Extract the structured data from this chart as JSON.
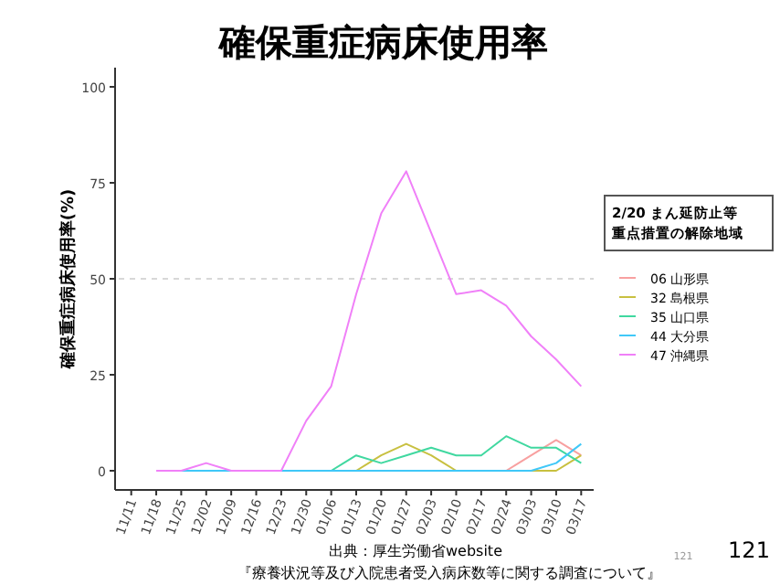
{
  "chart_data": {
    "type": "line",
    "title": "確保重症病床使用率",
    "ylabel": "確保重症病床使用率(%)",
    "legend_title": "2/20 まん延防止等重点措置の解除地域",
    "categories": [
      "11/11",
      "11/18",
      "11/25",
      "12/02",
      "12/09",
      "12/16",
      "12/23",
      "12/30",
      "01/06",
      "01/13",
      "01/20",
      "01/27",
      "02/03",
      "02/10",
      "02/17",
      "02/24",
      "03/03",
      "03/10",
      "03/17"
    ],
    "series": [
      {
        "name": "06 山形県",
        "color": "#f8a0a0",
        "values": [
          null,
          null,
          null,
          null,
          null,
          null,
          null,
          null,
          null,
          null,
          null,
          null,
          null,
          null,
          null,
          0,
          4,
          8,
          4
        ]
      },
      {
        "name": "32 島根県",
        "color": "#c8c040",
        "values": [
          null,
          null,
          null,
          null,
          null,
          null,
          null,
          null,
          null,
          0,
          4,
          7,
          4,
          0,
          0,
          0,
          0,
          0,
          4
        ]
      },
      {
        "name": "35 山口県",
        "color": "#40d8a0",
        "values": [
          null,
          null,
          null,
          null,
          null,
          null,
          null,
          null,
          0,
          4,
          2,
          4,
          6,
          4,
          4,
          9,
          6,
          6,
          2
        ]
      },
      {
        "name": "44 大分県",
        "color": "#40c8f8",
        "values": [
          null,
          null,
          0,
          0,
          0,
          0,
          0,
          0,
          0,
          0,
          0,
          0,
          0,
          0,
          0,
          0,
          0,
          2,
          7
        ]
      },
      {
        "name": "47 沖縄県",
        "color": "#f080f8",
        "values": [
          null,
          0,
          0,
          2,
          0,
          0,
          0,
          13,
          22,
          46,
          67,
          78,
          62,
          46,
          47,
          43,
          35,
          29,
          22
        ]
      }
    ],
    "ylim": [
      -5,
      105
    ],
    "yticks": [
      0,
      25,
      50,
      75,
      100
    ],
    "grid": false,
    "legend": "right",
    "ref_lines": [
      {
        "axis": "y",
        "value": 50,
        "color": "#cccccc",
        "line_style": "dashed"
      }
    ],
    "annotations": [
      "出典：厚生労働省website",
      "『療養状況等及び入院患者受入病床数等に関する調査について』",
      "121",
      "121"
    ]
  }
}
